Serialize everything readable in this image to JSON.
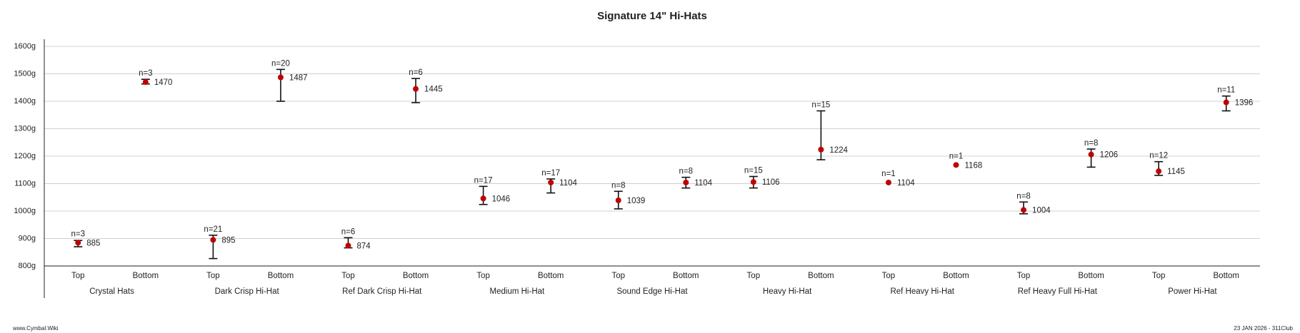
{
  "chart_data": {
    "type": "errorpoint",
    "title": "Signature 14\" Hi-Hats",
    "categories": [
      "Top",
      "Bottom",
      "Top",
      "Bottom",
      "Top",
      "Bottom",
      "Top",
      "Bottom",
      "Top",
      "Bottom",
      "Top",
      "Bottom",
      "Top",
      "Bottom",
      "Top",
      "Bottom",
      "Top",
      "Bottom"
    ],
    "groups": [
      "Crystal Hats",
      "Dark Crisp Hi-Hat",
      "Ref Dark Crisp Hi-Hat",
      "Medium Hi-Hat",
      "Sound Edge Hi-Hat",
      "Heavy Hi-Hat",
      "Ref Heavy Hi-Hat",
      "Ref Heavy Full Hi-Hat",
      "Power Hi-Hat"
    ],
    "series": [
      {
        "color": "#c00000",
        "values": [
          885,
          1470,
          895,
          1487,
          874,
          1445,
          1046,
          1104,
          1039,
          1104,
          1106,
          1224,
          1104,
          1168,
          1004,
          1206,
          1145,
          1396
        ],
        "low": [
          870,
          1463,
          827,
          1400,
          866,
          1395,
          1024,
          1066,
          1008,
          1084,
          1084,
          1187,
          null,
          null,
          990,
          1160,
          1130,
          1365
        ],
        "high": [
          893,
          1480,
          912,
          1516,
          903,
          1483,
          1090,
          1117,
          1072,
          1123,
          1126,
          1365,
          null,
          null,
          1033,
          1226,
          1180,
          1419
        ],
        "n_labels": [
          "n=3",
          "n=3",
          "n=21",
          "n=20",
          "n=6",
          "n=6",
          "n=17",
          "n=17",
          "n=8",
          "n=8",
          "n=15",
          "n=15",
          "n=1",
          "n=1",
          "n=8",
          "n=8",
          "n=12",
          "n=11"
        ]
      }
    ],
    "ylim": [
      800,
      1600
    ],
    "yticks": [
      {
        "value": 800,
        "label": "800g"
      },
      {
        "value": 900,
        "label": "900g"
      },
      {
        "value": 1000,
        "label": "1000g"
      },
      {
        "value": 1100,
        "label": "1100g"
      },
      {
        "value": 1200,
        "label": "1200g"
      },
      {
        "value": 1300,
        "label": "1300g"
      },
      {
        "value": 1400,
        "label": "1400g"
      },
      {
        "value": 1500,
        "label": "1500g"
      },
      {
        "value": 1600,
        "label": "1600g"
      }
    ],
    "grid": true,
    "footer_left": "www.Cymbal.Wiki",
    "footer_right": "23 JAN 2026 - 311Club"
  }
}
